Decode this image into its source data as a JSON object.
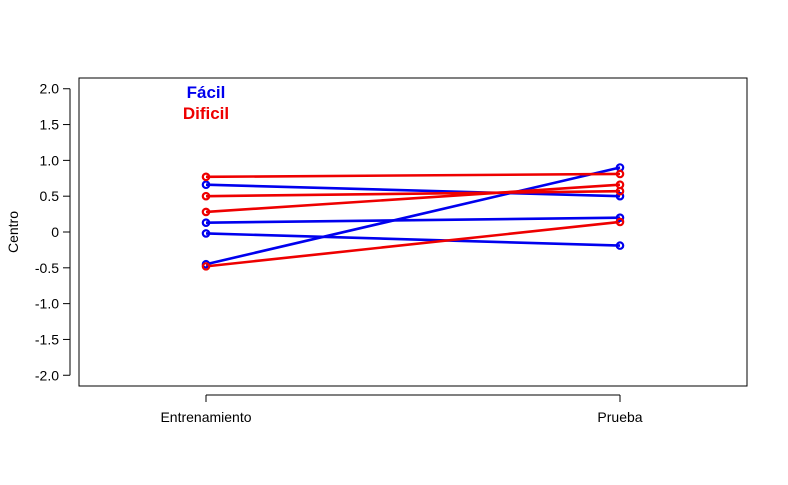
{
  "chart_data": {
    "type": "line",
    "title": "",
    "xlabel": "",
    "ylabel": "Centro",
    "categories": [
      "Entrenamiento",
      "Prueba"
    ],
    "ylim": [
      -2.15,
      2.15
    ],
    "yticks": [
      "2.0",
      "1.5",
      "1.0",
      "0.5",
      "0",
      "-0.5",
      "-1.0",
      "-1.5",
      "-2.0"
    ],
    "ytick_values": [
      2.0,
      1.5,
      1.0,
      0.5,
      0,
      -0.5,
      -1.0,
      -1.5,
      -2.0
    ],
    "grid": false,
    "legend_position": "top-left",
    "legend": [
      {
        "label": "Fácil",
        "color": "#0000ee"
      },
      {
        "label": "Dificil",
        "color": "#ee0000"
      }
    ],
    "series": [
      {
        "group": "Fácil",
        "color": "#0000ee",
        "values": [
          0.66,
          0.5
        ]
      },
      {
        "group": "Fácil",
        "color": "#0000ee",
        "values": [
          0.13,
          0.2
        ]
      },
      {
        "group": "Fácil",
        "color": "#0000ee",
        "values": [
          -0.02,
          -0.19
        ]
      },
      {
        "group": "Fácil",
        "color": "#0000ee",
        "values": [
          -0.45,
          0.9
        ]
      },
      {
        "group": "Dificil",
        "color": "#ee0000",
        "values": [
          0.77,
          0.81
        ]
      },
      {
        "group": "Dificil",
        "color": "#ee0000",
        "values": [
          0.5,
          0.57
        ]
      },
      {
        "group": "Dificil",
        "color": "#ee0000",
        "values": [
          0.28,
          0.66
        ]
      },
      {
        "group": "Dificil",
        "color": "#ee0000",
        "values": [
          -0.48,
          0.14
        ]
      }
    ]
  }
}
